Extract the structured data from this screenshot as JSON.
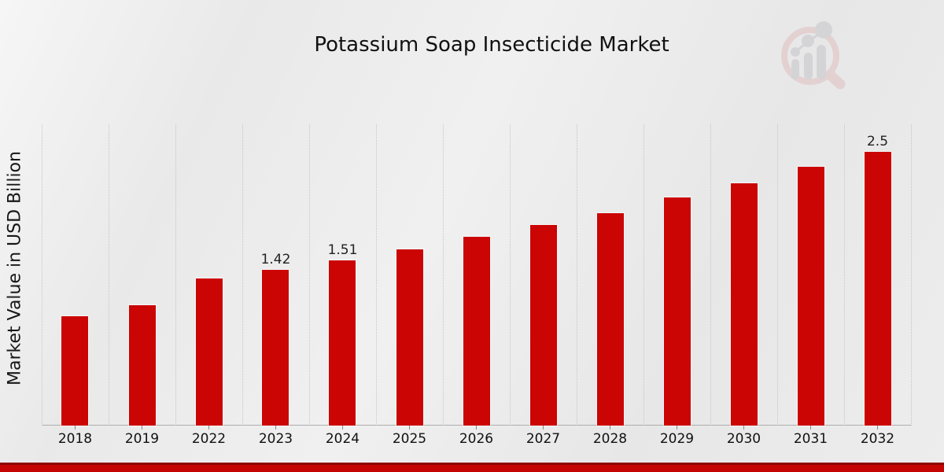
{
  "header": {
    "title": "Potassium Soap Insecticide Market"
  },
  "watermark": {
    "name": "bar-chart-magnifier-logo"
  },
  "colors": {
    "bar": "#cb0404",
    "footer_accent": "#c50404",
    "footer_edge": "#8e0505",
    "grid": "#c5c5c5",
    "axis": "#adadad",
    "text": "#111111",
    "watermark_ring": "#e0bcbc",
    "watermark_bars": "#c2c2c6"
  },
  "chart_data": {
    "type": "bar",
    "title": "Potassium Soap Insecticide Market",
    "xlabel": "",
    "ylabel": "Market Value in USD Billion",
    "categories": [
      "2018",
      "2019",
      "2022",
      "2023",
      "2024",
      "2025",
      "2026",
      "2027",
      "2028",
      "2029",
      "2030",
      "2031",
      "2032"
    ],
    "values": [
      1.0,
      1.1,
      1.34,
      1.42,
      1.51,
      1.61,
      1.72,
      1.83,
      1.94,
      2.08,
      2.21,
      2.36,
      2.5
    ],
    "data_labels": [
      "",
      "",
      "",
      "1.42",
      "1.51",
      "",
      "",
      "",
      "",
      "",
      "",
      "",
      "2.5"
    ],
    "ylim": [
      0,
      2.75
    ],
    "grid": "vertical-dotted",
    "legend": "none",
    "y_axis_ticks_visible": false
  }
}
